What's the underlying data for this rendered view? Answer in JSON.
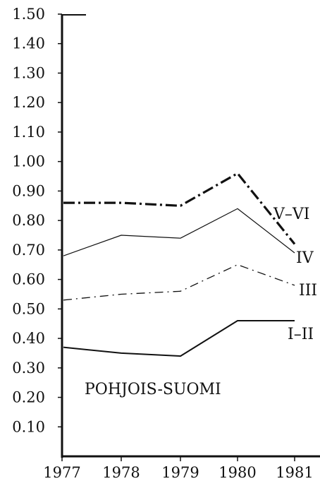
{
  "chart_data": {
    "type": "line",
    "title": "",
    "xlabel": "",
    "ylabel": "",
    "x": [
      "1977",
      "1978",
      "1979",
      "1980",
      "1981"
    ],
    "ylim": [
      0,
      1.5
    ],
    "y_ticks": [
      "0.10",
      "0.20",
      "0.30",
      "0.40",
      "0.50",
      "0.60",
      "0.70",
      "0.80",
      "0.90",
      "1.00",
      "1.10",
      "1.20",
      "1.30",
      "1.40",
      "1.50"
    ],
    "annotation": "POHJOIS-SUOMI",
    "grid": false,
    "series": [
      {
        "name": "V–VI",
        "style": "dash-dot-thick",
        "values": [
          0.86,
          0.86,
          0.85,
          0.96,
          0.72
        ]
      },
      {
        "name": "IV",
        "style": "solid-thin",
        "values": [
          0.68,
          0.75,
          0.74,
          0.84,
          0.69
        ]
      },
      {
        "name": "III",
        "style": "dash-dot-thin",
        "values": [
          0.53,
          0.55,
          0.56,
          0.65,
          0.58
        ]
      },
      {
        "name": "I–II",
        "style": "solid-medium",
        "values": [
          0.37,
          0.35,
          0.34,
          0.46,
          0.46
        ]
      }
    ]
  }
}
